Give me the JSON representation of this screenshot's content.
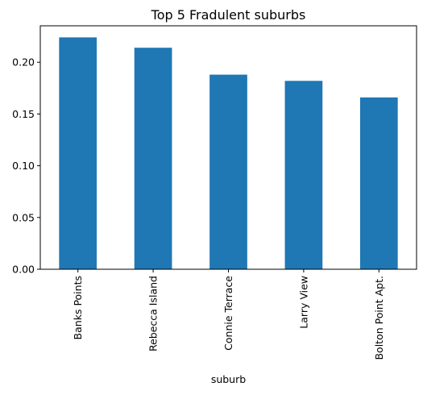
{
  "chart_data": {
    "type": "bar",
    "title": "Top 5 Fradulent suburbs",
    "xlabel": "suburb",
    "ylabel": "",
    "categories": [
      "Banks Points",
      "Rebecca Island",
      "Connie Terrace",
      "Larry View",
      "Bolton Point Apt."
    ],
    "values": [
      0.224,
      0.214,
      0.188,
      0.182,
      0.166
    ],
    "ylim": [
      0,
      0.2352
    ],
    "yticks": [
      0.0,
      0.05,
      0.1,
      0.15,
      0.2
    ],
    "ytick_labels": [
      "0.00",
      "0.05",
      "0.10",
      "0.15",
      "0.20"
    ],
    "grid": false,
    "bar_color": "#1f77b4"
  }
}
